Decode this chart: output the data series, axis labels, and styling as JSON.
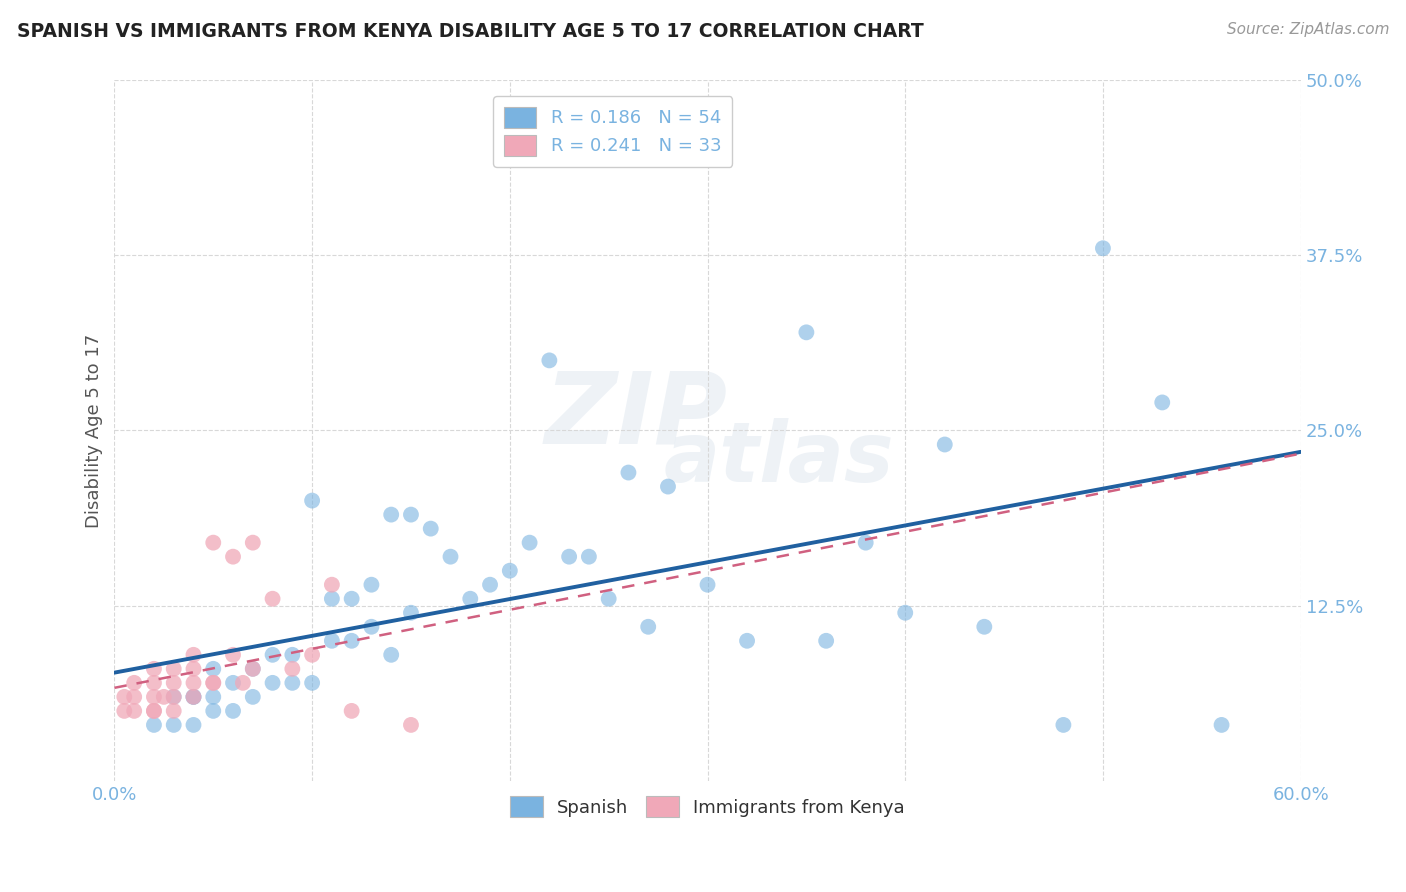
{
  "title": "SPANISH VS IMMIGRANTS FROM KENYA DISABILITY AGE 5 TO 17 CORRELATION CHART",
  "source": "Source: ZipAtlas.com",
  "ylabel": "Disability Age 5 to 17",
  "xlim": [
    0.0,
    0.6
  ],
  "ylim": [
    0.0,
    0.5
  ],
  "ytick_values": [
    0.125,
    0.25,
    0.375,
    0.5
  ],
  "xtick_values": [
    0.0,
    0.1,
    0.2,
    0.3,
    0.4,
    0.5,
    0.6
  ],
  "legend_entries": [
    {
      "label": "R = 0.186   N = 54",
      "color": "#a8c8f0"
    },
    {
      "label": "R = 0.241   N = 33",
      "color": "#f0a8b8"
    }
  ],
  "legend_labels_bottom": [
    "Spanish",
    "Immigrants from Kenya"
  ],
  "blue_color": "#7ab3e0",
  "pink_color": "#f0a8b8",
  "trend_blue": "#2060a0",
  "trend_pink": "#d06080",
  "spanish_x": [
    0.02,
    0.03,
    0.03,
    0.04,
    0.04,
    0.04,
    0.05,
    0.05,
    0.05,
    0.06,
    0.06,
    0.07,
    0.07,
    0.08,
    0.08,
    0.09,
    0.09,
    0.1,
    0.1,
    0.11,
    0.11,
    0.12,
    0.12,
    0.13,
    0.13,
    0.14,
    0.14,
    0.15,
    0.15,
    0.16,
    0.17,
    0.18,
    0.19,
    0.2,
    0.21,
    0.22,
    0.23,
    0.24,
    0.25,
    0.26,
    0.27,
    0.28,
    0.3,
    0.32,
    0.35,
    0.36,
    0.38,
    0.4,
    0.42,
    0.44,
    0.48,
    0.5,
    0.53,
    0.56
  ],
  "spanish_y": [
    0.04,
    0.04,
    0.06,
    0.04,
    0.06,
    0.06,
    0.05,
    0.06,
    0.08,
    0.05,
    0.07,
    0.06,
    0.08,
    0.07,
    0.09,
    0.07,
    0.09,
    0.07,
    0.2,
    0.1,
    0.13,
    0.1,
    0.13,
    0.11,
    0.14,
    0.09,
    0.19,
    0.12,
    0.19,
    0.18,
    0.16,
    0.13,
    0.14,
    0.15,
    0.17,
    0.3,
    0.16,
    0.16,
    0.13,
    0.22,
    0.11,
    0.21,
    0.14,
    0.1,
    0.32,
    0.1,
    0.17,
    0.12,
    0.24,
    0.11,
    0.04,
    0.38,
    0.27,
    0.04
  ],
  "kenya_x": [
    0.005,
    0.005,
    0.01,
    0.01,
    0.01,
    0.02,
    0.02,
    0.02,
    0.02,
    0.02,
    0.025,
    0.03,
    0.03,
    0.03,
    0.03,
    0.04,
    0.04,
    0.04,
    0.04,
    0.05,
    0.05,
    0.05,
    0.06,
    0.06,
    0.065,
    0.07,
    0.07,
    0.08,
    0.09,
    0.1,
    0.11,
    0.12,
    0.15
  ],
  "kenya_y": [
    0.05,
    0.06,
    0.05,
    0.06,
    0.07,
    0.05,
    0.05,
    0.06,
    0.07,
    0.08,
    0.06,
    0.05,
    0.06,
    0.07,
    0.08,
    0.06,
    0.07,
    0.08,
    0.09,
    0.07,
    0.07,
    0.17,
    0.09,
    0.16,
    0.07,
    0.08,
    0.17,
    0.13,
    0.08,
    0.09,
    0.14,
    0.05,
    0.04
  ]
}
